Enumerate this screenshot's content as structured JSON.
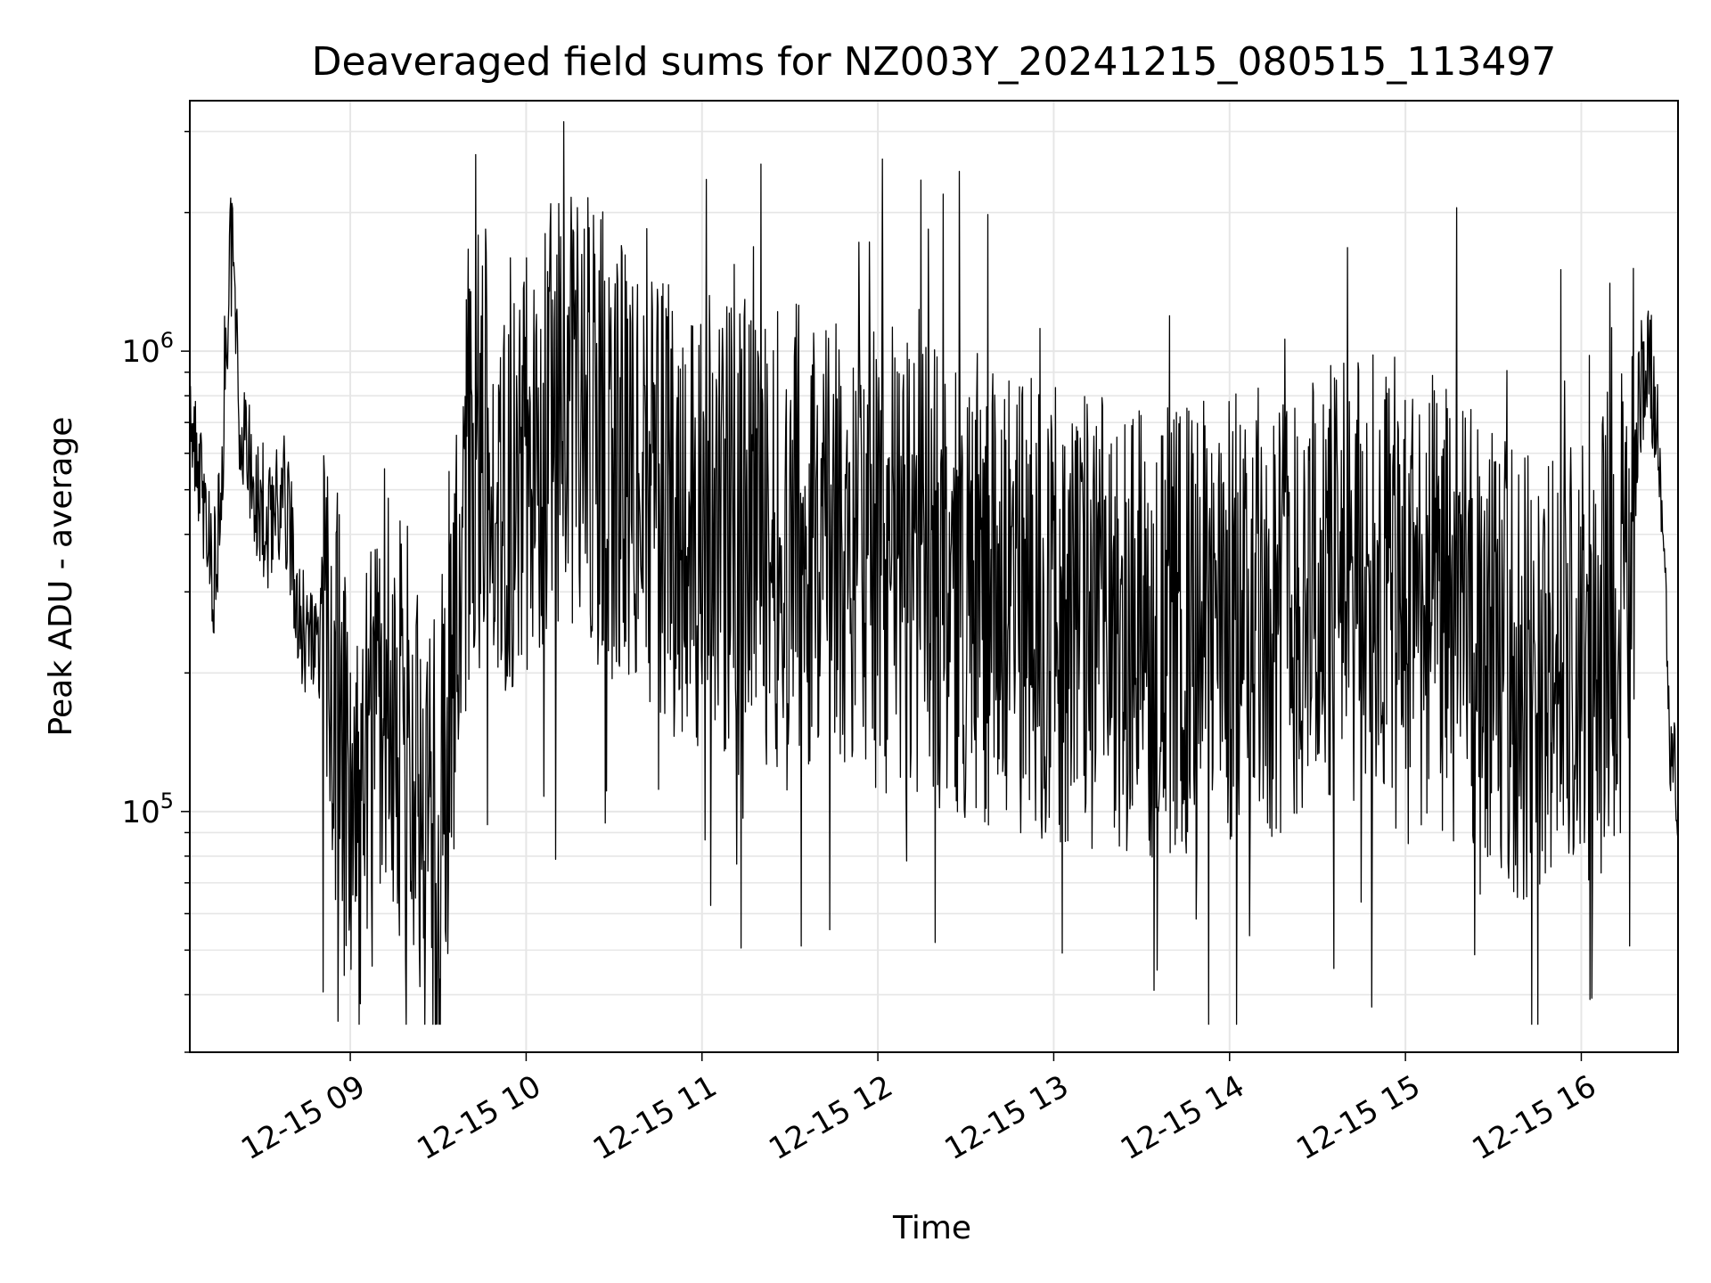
{
  "chart_data": {
    "type": "line",
    "title": "Deaveraged field sums for NZ003Y_20241215_080515_113497",
    "xlabel": "Time",
    "ylabel": "Peak ADU - average",
    "x_tick_labels": [
      "12-15 09",
      "12-15 10",
      "12-15 11",
      "12-15 12",
      "12-15 13",
      "12-15 14",
      "12-15 15",
      "12-15 16"
    ],
    "x_ticks": [
      "2024-12-15T09:00",
      "2024-12-15T10:00",
      "2024-12-15T11:00",
      "2024-12-15T12:00",
      "2024-12-15T13:00",
      "2024-12-15T14:00",
      "2024-12-15T15:00",
      "2024-12-15T16:00"
    ],
    "x_range": [
      "2024-12-15T08:05:15",
      "2024-12-15T16:33:00"
    ],
    "y_scale": "log",
    "ylim": [
      30000,
      3500000
    ],
    "y_tick_labels": [
      {
        "value": 100000,
        "base": "10",
        "exponent": "5"
      },
      {
        "value": 1000000,
        "base": "10",
        "exponent": "6"
      }
    ],
    "grid": true,
    "line_color": "#000000",
    "grid_color": "#e6e6e6",
    "series": [
      {
        "values_note_free": true,
        "x": [
          "08:05",
          "08:07",
          "08:10",
          "08:12",
          "08:14",
          "08:16",
          "08:18",
          "08:20",
          "08:22",
          "08:24",
          "08:26",
          "08:28",
          "08:30",
          "08:33",
          "08:36",
          "08:39",
          "08:42",
          "08:45",
          "08:48",
          "08:51",
          "08:54",
          "08:57",
          "09:00",
          "09:03",
          "09:06",
          "09:09",
          "09:12",
          "09:15",
          "09:18",
          "09:21",
          "09:24",
          "09:27",
          "09:30",
          "09:33",
          "09:36",
          "09:39",
          "09:42",
          "09:45",
          "09:48",
          "09:51",
          "09:54",
          "09:57",
          "10:00",
          "10:05",
          "10:10",
          "10:15",
          "10:20",
          "10:25",
          "10:30",
          "10:35",
          "10:40",
          "10:45",
          "10:50",
          "10:55",
          "11:00",
          "11:10",
          "11:20",
          "11:30",
          "11:40",
          "11:50",
          "12:00",
          "12:10",
          "12:20",
          "12:30",
          "12:40",
          "12:50",
          "13:00",
          "13:10",
          "13:20",
          "13:30",
          "13:40",
          "13:50",
          "14:00",
          "14:10",
          "14:20",
          "14:30",
          "14:40",
          "14:50",
          "15:00",
          "15:10",
          "15:20",
          "15:30",
          "15:40",
          "15:50",
          "16:00",
          "16:05",
          "16:10",
          "16:15",
          "16:18",
          "16:20",
          "16:22",
          "16:24",
          "16:26",
          "16:28",
          "16:30",
          "16:32",
          "16:33"
        ],
        "y": [
          650000,
          600000,
          450000,
          380000,
          330000,
          550000,
          1200000,
          1900000,
          800000,
          650000,
          600000,
          500000,
          450000,
          400000,
          500000,
          450000,
          280000,
          230000,
          200000,
          250000,
          200000,
          150000,
          90000,
          70000,
          120000,
          150000,
          200000,
          170000,
          150000,
          120000,
          100000,
          90000,
          80000,
          150000,
          300000,
          500000,
          600000,
          650000,
          600000,
          550000,
          500000,
          550000,
          600000,
          650000,
          700000,
          750000,
          700000,
          650000,
          600000,
          550000,
          500000,
          480000,
          460000,
          450000,
          430000,
          420000,
          400000,
          380000,
          370000,
          360000,
          350000,
          330000,
          320000,
          300000,
          290000,
          280000,
          270000,
          260000,
          260000,
          250000,
          240000,
          250000,
          260000,
          270000,
          280000,
          300000,
          310000,
          320000,
          300000,
          280000,
          250000,
          220000,
          200000,
          190000,
          200000,
          210000,
          250000,
          300000,
          500000,
          800000,
          950000,
          900000,
          700000,
          400000,
          150000,
          120000,
          100000
        ]
      }
    ]
  }
}
